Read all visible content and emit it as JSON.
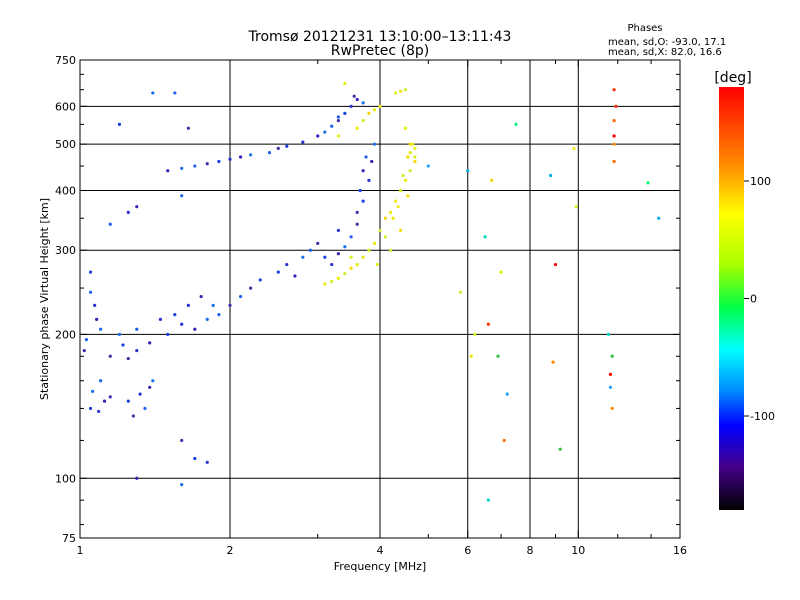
{
  "chart_data": {
    "type": "scatter",
    "title": "Tromsø 20121231 13:10:00–13:11:43",
    "subtitle": "RwPretec (8p)",
    "xlabel": "Frequency [MHz]",
    "ylabel": "Stationary phase Virtual Height [km]",
    "x_scale": "log",
    "y_scale": "log",
    "xlim": [
      1,
      16
    ],
    "ylim": [
      75,
      750
    ],
    "x_ticks": [
      1,
      2,
      4,
      6,
      8,
      10,
      16
    ],
    "y_ticks": [
      75,
      100,
      200,
      300,
      400,
      500,
      600,
      750
    ],
    "x_gridlines": [
      2,
      4,
      6,
      8,
      10
    ],
    "y_gridlines": [
      100,
      200,
      300,
      400,
      500,
      600
    ],
    "legend": {
      "title": "Phases",
      "line_o": "mean, sd,O: -93.0, 17.1",
      "line_x": "mean, sd,X:  82.0, 16.6"
    },
    "colorbar": {
      "label": "[deg]",
      "ticks": [
        100,
        0,
        -100
      ],
      "range": [
        -180,
        180
      ]
    },
    "series": [
      {
        "values": [
          [
            1.05,
            140
          ],
          [
            1.09,
            138
          ],
          [
            1.12,
            145
          ],
          [
            1.06,
            152
          ],
          [
            1.1,
            160
          ],
          [
            1.15,
            148
          ],
          [
            1.05,
            270
          ],
          [
            1.07,
            230
          ],
          [
            1.08,
            215
          ],
          [
            1.1,
            205
          ],
          [
            1.03,
            195
          ],
          [
            1.15,
            180
          ],
          [
            1.22,
            190
          ],
          [
            1.3,
            185
          ],
          [
            1.38,
            192
          ],
          [
            1.2,
            200
          ],
          [
            1.3,
            205
          ],
          [
            1.25,
            178
          ],
          [
            1.25,
            145
          ],
          [
            1.32,
            150
          ],
          [
            1.38,
            155
          ],
          [
            1.4,
            160
          ],
          [
            1.35,
            140
          ],
          [
            1.28,
            135
          ],
          [
            1.5,
            200
          ],
          [
            1.6,
            210
          ],
          [
            1.7,
            205
          ],
          [
            1.8,
            215
          ],
          [
            1.9,
            220
          ],
          [
            2.0,
            230
          ],
          [
            1.55,
            220
          ],
          [
            1.65,
            230
          ],
          [
            1.75,
            240
          ],
          [
            1.85,
            230
          ],
          [
            2.1,
            240
          ],
          [
            2.2,
            250
          ],
          [
            2.3,
            260
          ],
          [
            1.45,
            215
          ],
          [
            1.5,
            440
          ],
          [
            1.6,
            445
          ],
          [
            1.7,
            450
          ],
          [
            1.8,
            455
          ],
          [
            1.9,
            460
          ],
          [
            2.0,
            465
          ],
          [
            2.1,
            470
          ],
          [
            2.2,
            475
          ],
          [
            2.4,
            480
          ],
          [
            2.5,
            490
          ],
          [
            2.6,
            495
          ],
          [
            2.8,
            505
          ],
          [
            3.0,
            520
          ],
          [
            3.1,
            530
          ],
          [
            3.2,
            545
          ],
          [
            3.3,
            560
          ],
          [
            3.4,
            580
          ],
          [
            3.5,
            600
          ],
          [
            3.6,
            620
          ],
          [
            3.7,
            610
          ],
          [
            3.3,
            570
          ],
          [
            3.55,
            630
          ],
          [
            2.5,
            270
          ],
          [
            2.6,
            280
          ],
          [
            2.7,
            265
          ],
          [
            2.8,
            290
          ],
          [
            2.9,
            300
          ],
          [
            3.0,
            310
          ],
          [
            3.1,
            290
          ],
          [
            3.2,
            280
          ],
          [
            3.3,
            295
          ],
          [
            3.4,
            305
          ],
          [
            3.5,
            320
          ],
          [
            3.6,
            340
          ],
          [
            3.7,
            380
          ],
          [
            3.8,
            420
          ],
          [
            3.85,
            460
          ],
          [
            3.9,
            500
          ],
          [
            3.75,
            470
          ],
          [
            3.6,
            360
          ],
          [
            3.65,
            400
          ],
          [
            3.3,
            330
          ],
          [
            3.7,
            440
          ],
          [
            1.4,
            640
          ],
          [
            1.55,
            640
          ],
          [
            1.65,
            540
          ],
          [
            1.2,
            550
          ],
          [
            1.25,
            360
          ],
          [
            1.3,
            370
          ],
          [
            1.6,
            390
          ],
          [
            1.15,
            340
          ],
          [
            1.6,
            120
          ],
          [
            1.7,
            110
          ],
          [
            1.8,
            108
          ],
          [
            1.3,
            100
          ],
          [
            1.6,
            97
          ],
          [
            1.05,
            245
          ],
          [
            1.02,
            185
          ]
        ]
      },
      {
        "values": [
          [
            3.1,
            255
          ],
          [
            3.2,
            258
          ],
          [
            3.3,
            262
          ],
          [
            3.4,
            268
          ],
          [
            3.5,
            275
          ],
          [
            3.6,
            280
          ],
          [
            3.7,
            290
          ],
          [
            3.8,
            300
          ],
          [
            3.9,
            310
          ],
          [
            4.0,
            330
          ],
          [
            4.1,
            350
          ],
          [
            4.2,
            360
          ],
          [
            4.3,
            380
          ],
          [
            4.4,
            400
          ],
          [
            4.5,
            420
          ],
          [
            4.6,
            440
          ],
          [
            4.7,
            460
          ],
          [
            4.6,
            480
          ],
          [
            4.65,
            500
          ],
          [
            4.7,
            470
          ],
          [
            4.55,
            390
          ],
          [
            4.2,
            300
          ],
          [
            4.4,
            330
          ],
          [
            3.95,
            280
          ],
          [
            4.35,
            370
          ],
          [
            4.1,
            320
          ],
          [
            3.6,
            540
          ],
          [
            3.7,
            560
          ],
          [
            3.8,
            580
          ],
          [
            3.9,
            590
          ],
          [
            4.0,
            600
          ],
          [
            4.3,
            640
          ],
          [
            4.4,
            645
          ],
          [
            4.5,
            650
          ],
          [
            4.6,
            500
          ],
          [
            4.5,
            540
          ],
          [
            4.7,
            490
          ],
          [
            3.5,
            290
          ],
          [
            4.25,
            350
          ],
          [
            4.45,
            430
          ],
          [
            4.55,
            470
          ],
          [
            3.4,
            670
          ],
          [
            3.3,
            520
          ],
          [
            6.2,
            200
          ],
          [
            6.1,
            180
          ],
          [
            5.8,
            245
          ],
          [
            6.7,
            420
          ],
          [
            7.0,
            270
          ],
          [
            9.8,
            490
          ],
          [
            9.9,
            370
          ]
        ]
      },
      {
        "values": [
          [
            11.8,
            650
          ],
          [
            11.8,
            560
          ],
          [
            11.8,
            520
          ],
          [
            11.8,
            500
          ],
          [
            11.9,
            600
          ],
          [
            11.8,
            460
          ],
          [
            9.0,
            280
          ],
          [
            8.9,
            175
          ],
          [
            6.6,
            210
          ],
          [
            7.1,
            120
          ],
          [
            11.6,
            165
          ],
          [
            11.7,
            140
          ]
        ]
      },
      {
        "values": [
          [
            6.0,
            440
          ],
          [
            6.5,
            320
          ],
          [
            6.9,
            180
          ],
          [
            7.2,
            150
          ],
          [
            7.5,
            550
          ],
          [
            8.8,
            430
          ],
          [
            11.5,
            200
          ],
          [
            11.7,
            180
          ],
          [
            11.6,
            155
          ],
          [
            13.8,
            415
          ],
          [
            14.5,
            350
          ],
          [
            6.6,
            90
          ],
          [
            9.2,
            115
          ],
          [
            5.0,
            450
          ]
        ]
      }
    ]
  }
}
